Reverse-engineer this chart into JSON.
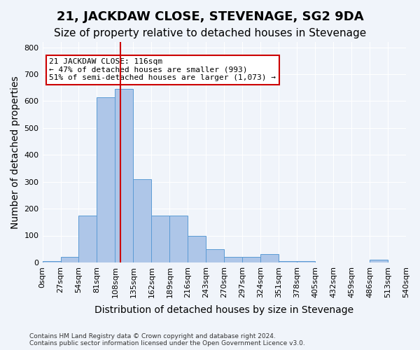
{
  "title": "21, JACKDAW CLOSE, STEVENAGE, SG2 9DA",
  "subtitle": "Size of property relative to detached houses in Stevenage",
  "xlabel": "Distribution of detached houses by size in Stevenage",
  "ylabel": "Number of detached properties",
  "bin_edges": [
    0,
    27,
    54,
    81,
    108,
    135,
    162,
    189,
    216,
    243,
    270,
    297,
    324,
    351,
    378,
    405,
    432,
    459,
    486,
    513,
    540
  ],
  "bar_heights": [
    5,
    20,
    175,
    615,
    645,
    310,
    175,
    175,
    100,
    50,
    20,
    20,
    30,
    5,
    5,
    0,
    0,
    0,
    10,
    0
  ],
  "bar_color": "#aec6e8",
  "bar_edge_color": "#5b9bd5",
  "property_value": 116,
  "vline_color": "#cc0000",
  "annotation_text": "21 JACKDAW CLOSE: 116sqm\n← 47% of detached houses are smaller (993)\n51% of semi-detached houses are larger (1,073) →",
  "annotation_box_color": "#ffffff",
  "annotation_box_edge_color": "#cc0000",
  "ylim": [
    0,
    820
  ],
  "yticks": [
    0,
    100,
    200,
    300,
    400,
    500,
    600,
    700,
    800
  ],
  "footer_text": "Contains HM Land Registry data © Crown copyright and database right 2024.\nContains public sector information licensed under the Open Government Licence v3.0.",
  "background_color": "#f0f4fa",
  "grid_color": "#ffffff",
  "title_fontsize": 13,
  "subtitle_fontsize": 11,
  "tick_label_fontsize": 8,
  "axis_label_fontsize": 10
}
